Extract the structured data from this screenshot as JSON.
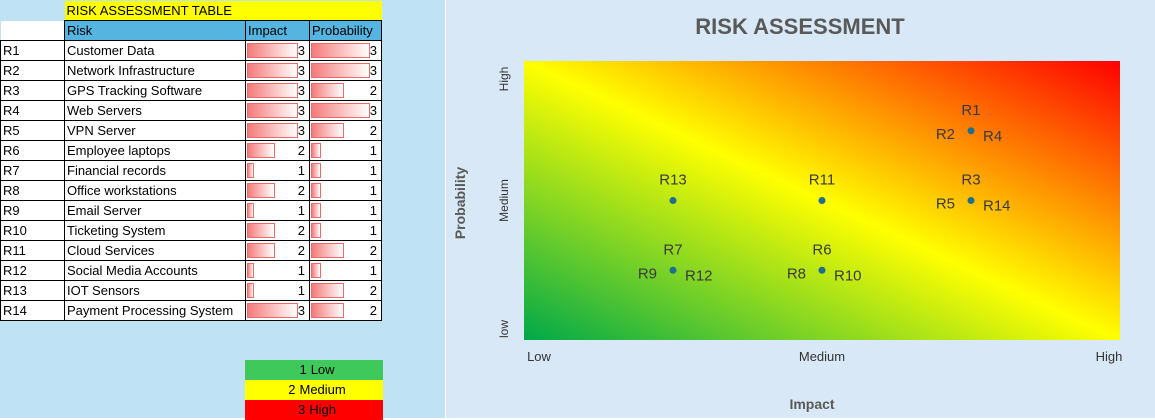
{
  "table": {
    "title": "RISK ASSESSMENT TABLE",
    "headers": {
      "risk": "Risk",
      "impact": "Impact",
      "probability": "Probability"
    },
    "rows": [
      {
        "id": "R1",
        "name": "Customer Data",
        "impact": 3,
        "probability": 3
      },
      {
        "id": "R2",
        "name": "Network Infrastructure",
        "impact": 3,
        "probability": 3
      },
      {
        "id": "R3",
        "name": "GPS Tracking Software",
        "impact": 3,
        "probability": 2
      },
      {
        "id": "R4",
        "name": "Web Servers",
        "impact": 3,
        "probability": 3
      },
      {
        "id": "R5",
        "name": "VPN Server",
        "impact": 3,
        "probability": 2
      },
      {
        "id": "R6",
        "name": "Employee laptops",
        "impact": 2,
        "probability": 1
      },
      {
        "id": "R7",
        "name": "Financial records",
        "impact": 1,
        "probability": 1
      },
      {
        "id": "R8",
        "name": "Office workstations",
        "impact": 2,
        "probability": 1
      },
      {
        "id": "R9",
        "name": "Email Server",
        "impact": 1,
        "probability": 1
      },
      {
        "id": "R10",
        "name": "Ticketing System",
        "impact": 2,
        "probability": 1
      },
      {
        "id": "R11",
        "name": "Cloud Services",
        "impact": 2,
        "probability": 2
      },
      {
        "id": "R12",
        "name": "Social Media Accounts",
        "impact": 1,
        "probability": 1
      },
      {
        "id": "R13",
        "name": "IOT Sensors",
        "impact": 1,
        "probability": 2
      },
      {
        "id": "R14",
        "name": "Payment Processing System",
        "impact": 3,
        "probability": 2
      }
    ]
  },
  "legend": [
    {
      "value": "1",
      "label": "Low",
      "color": "#3ec95a"
    },
    {
      "value": "2",
      "label": "Medium",
      "color": "#ffff00"
    },
    {
      "value": "3",
      "label": "High",
      "color": "#ff0000"
    }
  ],
  "chart_data": {
    "type": "scatter",
    "title": "RISK ASSESSMENT",
    "xlabel": "Impact",
    "ylabel": "Probability",
    "x_ticks": [
      "Low",
      "Medium",
      "High"
    ],
    "y_ticks": [
      "low",
      "Medium",
      "High"
    ],
    "xlim": [
      0,
      4
    ],
    "ylim": [
      0,
      4
    ],
    "grid": false,
    "background_gradient": [
      "#00a84a",
      "#ffff00",
      "#ff0000"
    ],
    "marker_color": "#1f6e8c",
    "points": [
      {
        "label": "R1",
        "x": 3,
        "y": 3
      },
      {
        "label": "R2",
        "x": 3,
        "y": 3
      },
      {
        "label": "R3",
        "x": 3,
        "y": 2
      },
      {
        "label": "R4",
        "x": 3,
        "y": 3
      },
      {
        "label": "R5",
        "x": 3,
        "y": 2
      },
      {
        "label": "R6",
        "x": 2,
        "y": 1
      },
      {
        "label": "R7",
        "x": 1,
        "y": 1
      },
      {
        "label": "R8",
        "x": 2,
        "y": 1
      },
      {
        "label": "R9",
        "x": 1,
        "y": 1
      },
      {
        "label": "R10",
        "x": 2,
        "y": 1
      },
      {
        "label": "R11",
        "x": 2,
        "y": 2
      },
      {
        "label": "R12",
        "x": 1,
        "y": 1
      },
      {
        "label": "R13",
        "x": 1,
        "y": 2
      },
      {
        "label": "R14",
        "x": 3,
        "y": 2
      }
    ]
  }
}
